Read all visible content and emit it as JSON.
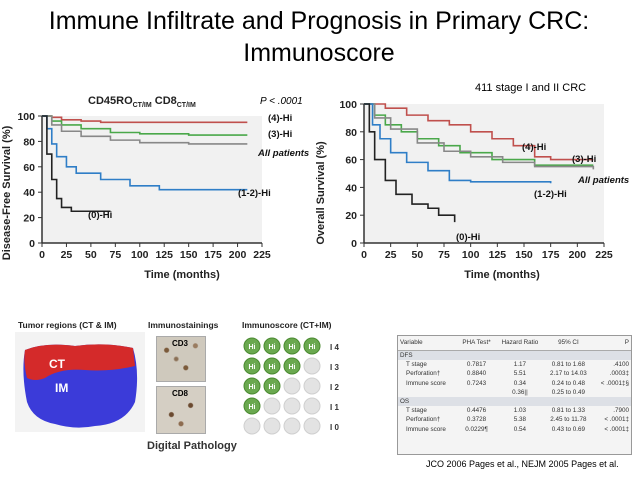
{
  "title_line1": "Immune Infiltrate and Prognosis in Primary CRC:",
  "title_line2": "Immunoscore",
  "subnote": "411 stage I and II CRC",
  "footer": "JCO 2006 Pages et al., NEJM 2005 Pages et al.",
  "chart_data": [
    {
      "type": "line",
      "panel": "left",
      "header": "CD45RO CT/IM  CD8 CT/IM",
      "pvalue": "P < .0001",
      "ylabel": "Disease-Free Survival (%)",
      "xlabel": "Time (months)",
      "xlim": [
        0,
        225
      ],
      "ylim": [
        0,
        100
      ],
      "xticks": [
        0,
        25,
        50,
        75,
        100,
        125,
        150,
        175,
        200,
        225
      ],
      "yticks": [
        0,
        20,
        40,
        60,
        80,
        100
      ],
      "series": [
        {
          "name": "(4)-Hi",
          "color": "#c0504d",
          "points": [
            [
              0,
              100
            ],
            [
              10,
              99
            ],
            [
              20,
              97
            ],
            [
              40,
              96
            ],
            [
              60,
              95
            ],
            [
              100,
              95
            ],
            [
              150,
              95
            ],
            [
              210,
              95
            ]
          ]
        },
        {
          "name": "(3)-Hi",
          "color": "#4aa84a",
          "points": [
            [
              0,
              100
            ],
            [
              10,
              96
            ],
            [
              20,
              93
            ],
            [
              40,
              90
            ],
            [
              70,
              87
            ],
            [
              100,
              86
            ],
            [
              150,
              85
            ],
            [
              210,
              85
            ]
          ]
        },
        {
          "name": "All patients",
          "color": "#888888",
          "points": [
            [
              0,
              100
            ],
            [
              10,
              93
            ],
            [
              20,
              88
            ],
            [
              40,
              84
            ],
            [
              70,
              81
            ],
            [
              100,
              79
            ],
            [
              150,
              78
            ],
            [
              210,
              78
            ]
          ]
        },
        {
          "name": "(1-2)-Hi",
          "color": "#2f7ec7",
          "points": [
            [
              0,
              100
            ],
            [
              5,
              90
            ],
            [
              10,
              78
            ],
            [
              15,
              68
            ],
            [
              25,
              60
            ],
            [
              35,
              55
            ],
            [
              60,
              50
            ],
            [
              90,
              45
            ],
            [
              120,
              42
            ],
            [
              210,
              42
            ]
          ]
        },
        {
          "name": "(0)-Hi",
          "color": "#222222",
          "points": [
            [
              0,
              100
            ],
            [
              5,
              70
            ],
            [
              10,
              50
            ],
            [
              15,
              35
            ],
            [
              20,
              28
            ],
            [
              30,
              25
            ],
            [
              70,
              25
            ]
          ]
        }
      ]
    },
    {
      "type": "line",
      "panel": "right",
      "ylabel": "Overall Survival (%)",
      "xlabel": "Time (months)",
      "xlim": [
        0,
        225
      ],
      "ylim": [
        0,
        100
      ],
      "xticks": [
        0,
        25,
        50,
        75,
        100,
        125,
        150,
        175,
        200,
        225
      ],
      "yticks": [
        0,
        20,
        40,
        60,
        80,
        100
      ],
      "series": [
        {
          "name": "(4)-Hi",
          "color": "#c0504d",
          "points": [
            [
              0,
              100
            ],
            [
              20,
              97
            ],
            [
              40,
              92
            ],
            [
              60,
              88
            ],
            [
              80,
              85
            ],
            [
              100,
              80
            ],
            [
              120,
              75
            ],
            [
              140,
              70
            ],
            [
              160,
              62
            ],
            [
              175,
              60
            ],
            [
              215,
              60
            ]
          ]
        },
        {
          "name": "(3)-Hi",
          "color": "#4aa84a",
          "points": [
            [
              0,
              100
            ],
            [
              10,
              92
            ],
            [
              20,
              85
            ],
            [
              35,
              80
            ],
            [
              50,
              75
            ],
            [
              70,
              70
            ],
            [
              90,
              65
            ],
            [
              120,
              60
            ],
            [
              160,
              56
            ],
            [
              215,
              56
            ]
          ]
        },
        {
          "name": "All patients",
          "color": "#888888",
          "points": [
            [
              0,
              100
            ],
            [
              10,
              90
            ],
            [
              25,
              82
            ],
            [
              50,
              72
            ],
            [
              75,
              66
            ],
            [
              100,
              62
            ],
            [
              130,
              58
            ],
            [
              160,
              55
            ],
            [
              215,
              53
            ]
          ]
        },
        {
          "name": "(1-2)-Hi",
          "color": "#2f7ec7",
          "points": [
            [
              0,
              100
            ],
            [
              8,
              85
            ],
            [
              15,
              75
            ],
            [
              25,
              65
            ],
            [
              40,
              58
            ],
            [
              60,
              52
            ],
            [
              80,
              45
            ],
            [
              100,
              44
            ],
            [
              150,
              44
            ],
            [
              175,
              43
            ]
          ]
        },
        {
          "name": "(0)-Hi",
          "color": "#222222",
          "points": [
            [
              0,
              100
            ],
            [
              5,
              80
            ],
            [
              10,
              60
            ],
            [
              20,
              45
            ],
            [
              30,
              35
            ],
            [
              45,
              28
            ],
            [
              60,
              25
            ],
            [
              70,
              20
            ],
            [
              85,
              15
            ]
          ]
        }
      ]
    }
  ],
  "bottom": {
    "tumor_regions_title": "Tumor regions (CT & IM)",
    "ct_label": "CT",
    "im_label": "IM",
    "immunostainings_title": "Immunostainings",
    "cd3_label": "CD3",
    "cd8_label": "CD8",
    "immunoscore_title": "Immunoscore (CT+IM)",
    "digital_pathology": "Digital Pathology",
    "hi_label": "Hi",
    "score_rows": [
      {
        "hi": 4,
        "label": "I 4"
      },
      {
        "hi": 3,
        "label": "I 3"
      },
      {
        "hi": 2,
        "label": "I 2"
      },
      {
        "hi": 1,
        "label": "I 1"
      },
      {
        "hi": 0,
        "label": "I 0"
      }
    ]
  },
  "table": {
    "headers": [
      "Variable",
      "PHA Test*",
      "Hazard Ratio",
      "95% CI",
      "P"
    ],
    "rows": [
      {
        "section": true,
        "cells": [
          "DFS",
          "",
          "",
          "",
          ""
        ]
      },
      {
        "cells": [
          "T stage",
          "0.7817",
          "1.17",
          "0.81 to 1.68",
          ".4100"
        ]
      },
      {
        "cells": [
          "Perforation†",
          "0.8840",
          "5.51",
          "2.17 to 14.03",
          ".0003‡"
        ]
      },
      {
        "cells": [
          "Immune score",
          "0.7243",
          "0.34",
          "0.24 to 0.48",
          "< .0001‡§"
        ]
      },
      {
        "cells": [
          "",
          "",
          "0.36||",
          "0.25 to 0.49",
          ""
        ]
      },
      {
        "section": true,
        "cells": [
          "OS",
          "",
          "",
          "",
          ""
        ]
      },
      {
        "cells": [
          "T stage",
          "0.4476",
          "1.03",
          "0.81 to 1.33",
          ".7900"
        ]
      },
      {
        "cells": [
          "Perforation†",
          "0.3728",
          "5.38",
          "2.45 to 11.78",
          "< .0001‡"
        ]
      },
      {
        "cells": [
          "Immune score",
          "0.0229¶",
          "0.54",
          "0.43 to 0.69",
          "< .0001‡"
        ]
      }
    ]
  }
}
